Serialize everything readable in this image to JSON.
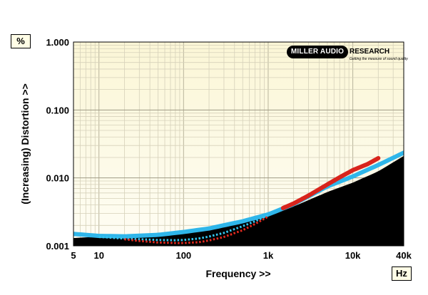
{
  "units": {
    "y": "%",
    "x": "Hz"
  },
  "logo": {
    "name_part1": "MILLER AUDIO",
    "name_part2": "RESEARCH",
    "tagline": "Getting the measure of sound quality"
  },
  "chart_data": {
    "type": "area",
    "title": "",
    "xlabel": "Frequency >>",
    "ylabel": "(Increasing) Distortion >>",
    "x_scale": "log",
    "y_scale": "log",
    "xlim": [
      5,
      40000
    ],
    "ylim": [
      0.001,
      1.0
    ],
    "grid": true,
    "x_ticks": [
      {
        "value": 5,
        "label": "5"
      },
      {
        "value": 10,
        "label": "10"
      },
      {
        "value": 100,
        "label": "100"
      },
      {
        "value": 1000,
        "label": "1k"
      },
      {
        "value": 10000,
        "label": "10k"
      },
      {
        "value": 40000,
        "label": "40k"
      }
    ],
    "y_ticks": [
      {
        "value": 0.001,
        "label": "0.001"
      },
      {
        "value": 0.01,
        "label": "0.010"
      },
      {
        "value": 0.1,
        "label": "0.100"
      },
      {
        "value": 1.0,
        "label": "1.000"
      }
    ],
    "series": [
      {
        "style": "area",
        "color": "#000000",
        "x": [
          5,
          10,
          20,
          50,
          100,
          200,
          500,
          1000,
          2000,
          5000,
          10000,
          20000,
          40000
        ],
        "y": [
          0.0013,
          0.00137,
          0.0014,
          0.00148,
          0.0016,
          0.0018,
          0.0023,
          0.0029,
          0.0038,
          0.0062,
          0.0085,
          0.0125,
          0.021
        ]
      },
      {
        "style": "band",
        "color": "#2fb6ea",
        "x": [
          5,
          10,
          20,
          50,
          100,
          200,
          500,
          1000,
          2000,
          5000,
          10000,
          20000,
          40000
        ],
        "y": [
          0.0015,
          0.0014,
          0.00138,
          0.00145,
          0.0016,
          0.0018,
          0.0023,
          0.0029,
          0.0041,
          0.0075,
          0.0105,
          0.0155,
          0.0235
        ]
      },
      {
        "style": "band",
        "color": "#d8241c",
        "x": [
          1500,
          2000,
          3000,
          5000,
          7000,
          10000,
          15000,
          20000
        ],
        "y": [
          0.0036,
          0.0042,
          0.0055,
          0.008,
          0.0102,
          0.013,
          0.016,
          0.0195
        ]
      },
      {
        "style": "dotted",
        "color": "#34c6f0",
        "x": [
          10,
          20,
          30,
          50,
          80,
          100,
          150,
          200,
          300,
          500,
          700,
          1000
        ],
        "y": [
          0.00135,
          0.00128,
          0.00125,
          0.00122,
          0.00121,
          0.00122,
          0.00128,
          0.00137,
          0.00155,
          0.00195,
          0.0023,
          0.0028
        ]
      },
      {
        "style": "dotted",
        "color": "#e32a1f",
        "x": [
          20,
          30,
          50,
          80,
          100,
          150,
          200,
          300,
          500,
          700,
          1000
        ],
        "y": [
          0.00125,
          0.00118,
          0.00112,
          0.0011,
          0.0011,
          0.00113,
          0.0012,
          0.00135,
          0.0017,
          0.0021,
          0.0027
        ]
      }
    ]
  }
}
